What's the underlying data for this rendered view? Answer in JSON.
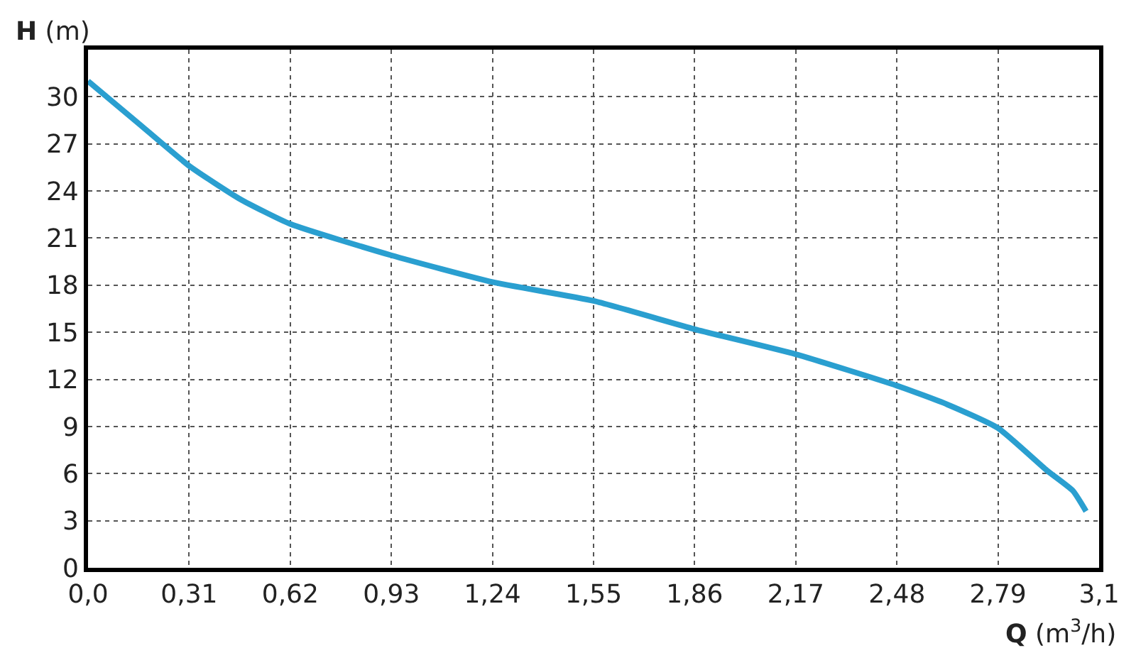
{
  "chart_data": {
    "type": "line",
    "xlabel": "Q (m$^{3}$/h)",
    "ylabel": "H (m)",
    "x": [
      0,
      0.155,
      0.31,
      0.465,
      0.62,
      0.93,
      1.24,
      1.55,
      1.86,
      2.17,
      2.48,
      2.635,
      2.79,
      2.94,
      3.02,
      3.06
    ],
    "series": [
      {
        "color": "#2a9fd0",
        "values": [
          31.0,
          28.3,
          25.6,
          23.5,
          21.9,
          19.9,
          18.2,
          17.0,
          15.2,
          13.6,
          11.6,
          10.4,
          8.9,
          6.2,
          4.9,
          3.6
        ]
      }
    ],
    "xlim": [
      0,
      3.1
    ],
    "ylim": [
      0,
      33
    ],
    "xticks": [
      {
        "value": 0,
        "label": "0,0"
      },
      {
        "value": 0.31,
        "label": "0,31"
      },
      {
        "value": 0.62,
        "label": "0,62"
      },
      {
        "value": 0.93,
        "label": "0,93"
      },
      {
        "value": 1.24,
        "label": "1,24"
      },
      {
        "value": 1.55,
        "label": "1,55"
      },
      {
        "value": 1.86,
        "label": "1,86"
      },
      {
        "value": 2.17,
        "label": "2,17"
      },
      {
        "value": 2.48,
        "label": "2,48"
      },
      {
        "value": 2.79,
        "label": "2,79"
      },
      {
        "value": 3.1,
        "label": "3,1"
      }
    ],
    "yticks": [
      0,
      3,
      6,
      9,
      12,
      15,
      18,
      21,
      24,
      27,
      30
    ],
    "grid": true,
    "marker": "none",
    "line_style": "solid"
  }
}
